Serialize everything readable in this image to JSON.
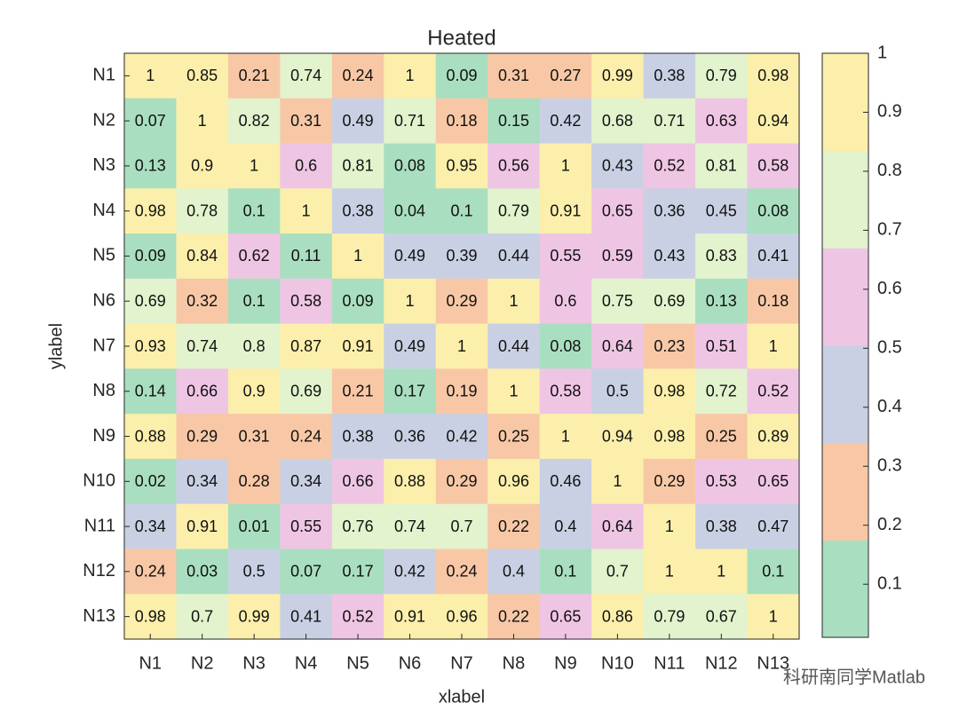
{
  "chart_data": {
    "type": "heatmap",
    "title": "Heated",
    "xlabel": "xlabel",
    "ylabel": "ylabel",
    "xcategories": [
      "N1",
      "N2",
      "N3",
      "N4",
      "N5",
      "N6",
      "N7",
      "N8",
      "N9",
      "N10",
      "N11",
      "N12",
      "N13"
    ],
    "ycategories": [
      "N1",
      "N2",
      "N3",
      "N4",
      "N5",
      "N6",
      "N7",
      "N8",
      "N9",
      "N10",
      "N11",
      "N12",
      "N13"
    ],
    "values": [
      [
        1,
        0.85,
        0.21,
        0.74,
        0.24,
        1,
        0.09,
        0.31,
        0.27,
        0.99,
        0.38,
        0.79,
        0.98
      ],
      [
        0.07,
        1,
        0.82,
        0.31,
        0.49,
        0.71,
        0.18,
        0.15,
        0.42,
        0.68,
        0.71,
        0.63,
        0.94
      ],
      [
        0.13,
        0.9,
        1,
        0.6,
        0.81,
        0.08,
        0.95,
        0.56,
        1,
        0.43,
        0.52,
        0.81,
        0.58
      ],
      [
        0.98,
        0.78,
        0.1,
        1,
        0.38,
        0.04,
        0.1,
        0.79,
        0.91,
        0.65,
        0.36,
        0.45,
        0.08
      ],
      [
        0.09,
        0.84,
        0.62,
        0.11,
        1,
        0.49,
        0.39,
        0.44,
        0.55,
        0.59,
        0.43,
        0.83,
        0.41
      ],
      [
        0.69,
        0.32,
        0.1,
        0.58,
        0.09,
        1,
        0.29,
        1,
        0.6,
        0.75,
        0.69,
        0.13,
        0.18
      ],
      [
        0.93,
        0.74,
        0.8,
        0.87,
        0.91,
        0.49,
        1,
        0.44,
        0.08,
        0.64,
        0.23,
        0.51,
        1
      ],
      [
        0.14,
        0.66,
        0.9,
        0.69,
        0.21,
        0.17,
        0.19,
        1,
        0.58,
        0.5,
        0.98,
        0.72,
        0.52
      ],
      [
        0.88,
        0.29,
        0.31,
        0.24,
        0.38,
        0.36,
        0.42,
        0.25,
        1,
        0.94,
        0.98,
        0.25,
        0.89
      ],
      [
        0.02,
        0.34,
        0.28,
        0.34,
        0.66,
        0.88,
        0.29,
        0.96,
        0.46,
        1,
        0.29,
        0.53,
        0.65
      ],
      [
        0.34,
        0.91,
        0.01,
        0.55,
        0.76,
        0.74,
        0.7,
        0.22,
        0.4,
        0.64,
        1,
        0.38,
        0.47
      ],
      [
        0.24,
        0.03,
        0.5,
        0.07,
        0.17,
        0.42,
        0.24,
        0.4,
        0.1,
        0.7,
        1,
        1,
        0.1
      ],
      [
        0.98,
        0.7,
        0.99,
        0.41,
        0.52,
        0.91,
        0.96,
        0.22,
        0.65,
        0.86,
        0.79,
        0.67,
        1
      ]
    ],
    "colors": [
      "#a9dfc0",
      "#f8c8a6",
      "#c9d0e4",
      "#efc5e4",
      "#e2f3cd",
      "#fbefab"
    ],
    "clim": [
      0.01,
      1
    ],
    "cticks": [
      0.1,
      0.2,
      0.3,
      0.4,
      0.5,
      0.6,
      0.7,
      0.8,
      0.9,
      1
    ],
    "watermark": "科研南同学Matlab"
  }
}
